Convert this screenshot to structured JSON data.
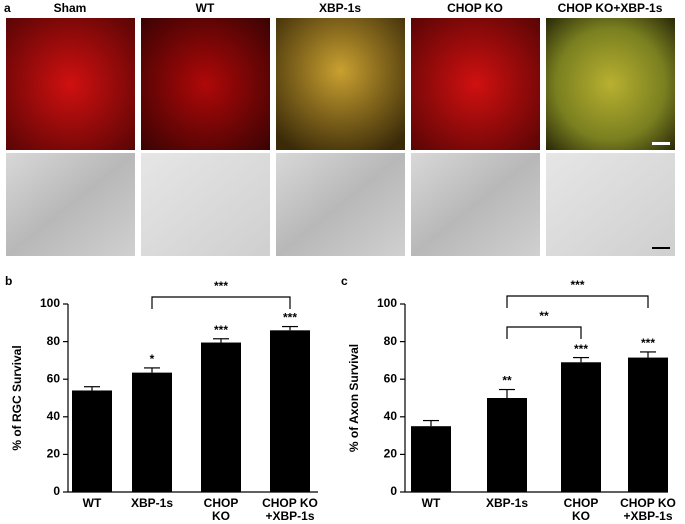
{
  "figure": {
    "micrographs": {
      "panel": "a",
      "labels": [
        "Sham",
        "WT",
        "XBP-1s",
        "CHOP KO",
        "CHOP KO+XBP-1s"
      ]
    },
    "charts": [
      {
        "type": "bar",
        "panel": "b",
        "ylabel": "% of RGC Survival",
        "categories": [
          [
            "WT"
          ],
          [
            "XBP-1s"
          ],
          [
            "CHOP",
            "KO"
          ],
          [
            "CHOP KO",
            "+XBP-1s"
          ]
        ],
        "values": [
          54,
          63.5,
          79.5,
          86
        ],
        "errors": [
          2,
          2.5,
          2,
          2
        ],
        "significance": [
          null,
          "*",
          "***",
          "***"
        ],
        "brackets": [
          {
            "label": "***",
            "from": 1,
            "to": 3
          }
        ],
        "color": "#000000",
        "ylim": [
          0,
          100
        ],
        "yticks": [
          0,
          20,
          40,
          60,
          80,
          100
        ]
      },
      {
        "type": "bar",
        "panel": "c",
        "ylabel": "% of Axon Survival",
        "categories": [
          [
            "WT"
          ],
          [
            "XBP-1s"
          ],
          [
            "CHOP",
            "KO"
          ],
          [
            "CHOP KO",
            "+XBP-1s"
          ]
        ],
        "values": [
          35,
          50,
          69,
          71.5
        ],
        "errors": [
          3,
          4.5,
          2.5,
          3
        ],
        "significance": [
          null,
          "**",
          "***",
          "***"
        ],
        "brackets": [
          {
            "label": "**",
            "from": 1,
            "to": 2
          },
          {
            "label": "***",
            "from": 1,
            "to": 3
          }
        ],
        "color": "#000000",
        "ylim": [
          0,
          100
        ],
        "yticks": [
          0,
          20,
          40,
          60,
          80,
          100
        ]
      }
    ]
  }
}
